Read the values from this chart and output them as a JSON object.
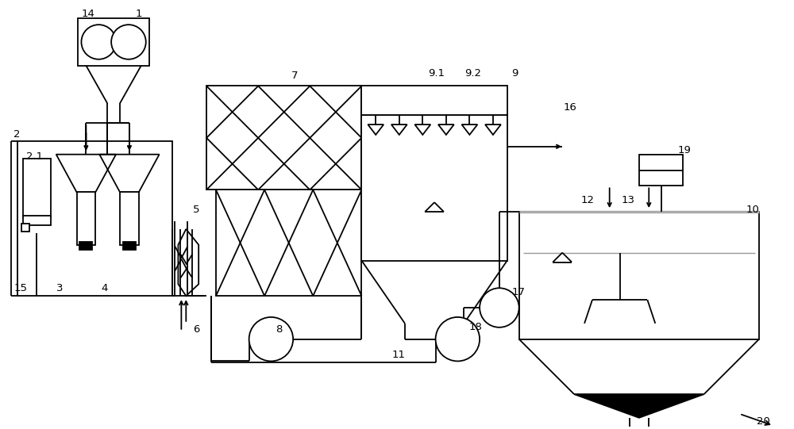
{
  "bg_color": "#ffffff",
  "line_color": "#000000",
  "lw": 1.3,
  "fig_width": 10.0,
  "fig_height": 5.41
}
